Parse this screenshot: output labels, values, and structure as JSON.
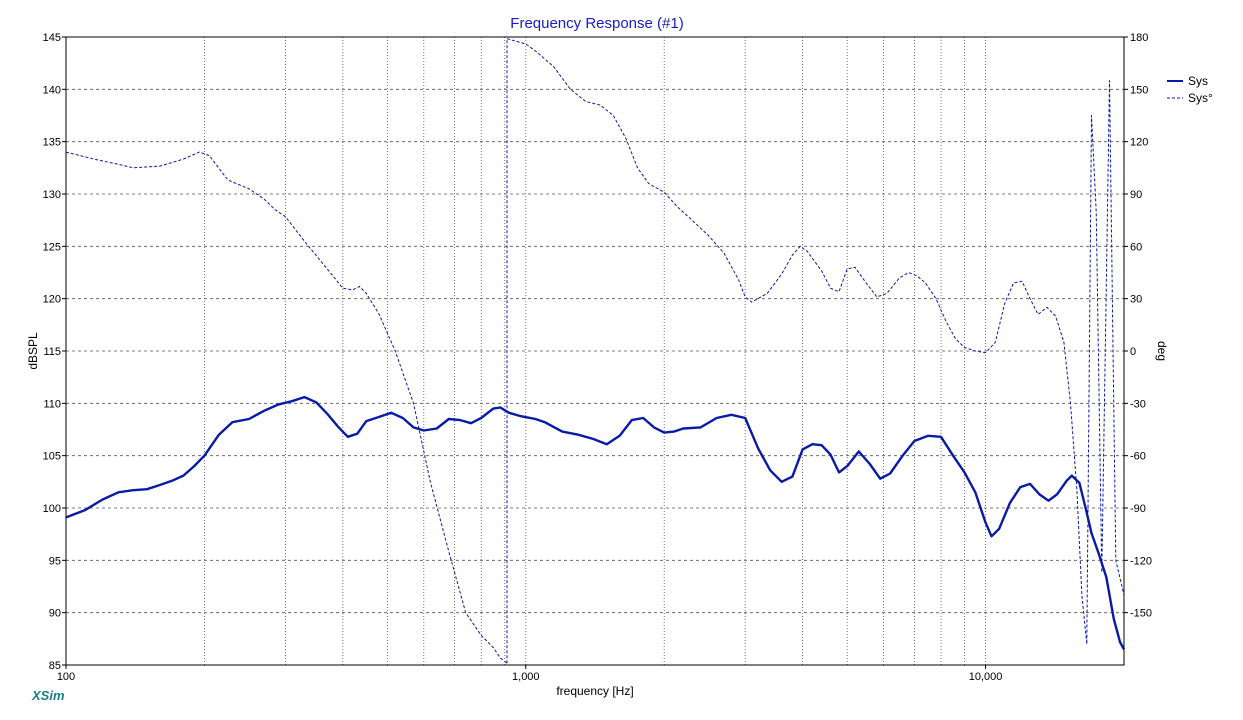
{
  "app": {
    "brand": "XSim"
  },
  "chart_data": {
    "type": "line",
    "title": "Frequency Response (#1)",
    "xlabel": "frequency [Hz]",
    "ylabel": "dBSPL",
    "y2label": "deg",
    "xscale": "log",
    "xlim": [
      100,
      20000
    ],
    "ylim": [
      85,
      145
    ],
    "y2lim": [
      -180,
      180
    ],
    "grid": true,
    "legend_position": "right",
    "x_tick_labels": [
      {
        "value": 100,
        "label": "100"
      },
      {
        "value": 1000,
        "label": "1,000"
      },
      {
        "value": 10000,
        "label": "10,000"
      }
    ],
    "y_ticks": [
      85,
      90,
      95,
      100,
      105,
      110,
      115,
      120,
      125,
      130,
      135,
      140,
      145
    ],
    "y2_ticks": [
      -150,
      -120,
      -90,
      -60,
      -30,
      0,
      30,
      60,
      90,
      120,
      150,
      180
    ],
    "colors": {
      "series": "#0a1aa8",
      "title": "#1a1acc",
      "grid": "#555555",
      "brand": "#1a7f8a"
    },
    "series": [
      {
        "name": "Sys",
        "axis": "left",
        "style": "solid",
        "points": [
          [
            100,
            99.1
          ],
          [
            110,
            99.8
          ],
          [
            120,
            100.8
          ],
          [
            130,
            101.5
          ],
          [
            140,
            101.7
          ],
          [
            150,
            101.8
          ],
          [
            160,
            102.2
          ],
          [
            170,
            102.6
          ],
          [
            180,
            103.1
          ],
          [
            190,
            104.0
          ],
          [
            200,
            105.0
          ],
          [
            215,
            107.0
          ],
          [
            230,
            108.2
          ],
          [
            250,
            108.5
          ],
          [
            270,
            109.3
          ],
          [
            290,
            109.9
          ],
          [
            310,
            110.2
          ],
          [
            330,
            110.6
          ],
          [
            350,
            110.1
          ],
          [
            370,
            109.0
          ],
          [
            390,
            107.8
          ],
          [
            410,
            106.8
          ],
          [
            430,
            107.1
          ],
          [
            450,
            108.3
          ],
          [
            480,
            108.7
          ],
          [
            510,
            109.1
          ],
          [
            540,
            108.6
          ],
          [
            570,
            107.7
          ],
          [
            600,
            107.4
          ],
          [
            640,
            107.6
          ],
          [
            680,
            108.5
          ],
          [
            720,
            108.4
          ],
          [
            760,
            108.1
          ],
          [
            800,
            108.6
          ],
          [
            850,
            109.5
          ],
          [
            880,
            109.6
          ],
          [
            920,
            109.1
          ],
          [
            970,
            108.8
          ],
          [
            1050,
            108.5
          ],
          [
            1100,
            108.2
          ],
          [
            1200,
            107.3
          ],
          [
            1300,
            107.0
          ],
          [
            1400,
            106.6
          ],
          [
            1500,
            106.1
          ],
          [
            1600,
            106.9
          ],
          [
            1700,
            108.4
          ],
          [
            1800,
            108.6
          ],
          [
            1900,
            107.7
          ],
          [
            2000,
            107.2
          ],
          [
            2100,
            107.3
          ],
          [
            2200,
            107.6
          ],
          [
            2400,
            107.7
          ],
          [
            2600,
            108.6
          ],
          [
            2800,
            108.9
          ],
          [
            3000,
            108.6
          ],
          [
            3200,
            105.7
          ],
          [
            3400,
            103.6
          ],
          [
            3600,
            102.5
          ],
          [
            3800,
            103.0
          ],
          [
            4000,
            105.6
          ],
          [
            4200,
            106.1
          ],
          [
            4400,
            106.0
          ],
          [
            4600,
            105.1
          ],
          [
            4800,
            103.4
          ],
          [
            5000,
            104.0
          ],
          [
            5300,
            105.4
          ],
          [
            5600,
            104.2
          ],
          [
            5900,
            102.8
          ],
          [
            6200,
            103.3
          ],
          [
            6600,
            105.0
          ],
          [
            7000,
            106.4
          ],
          [
            7500,
            106.9
          ],
          [
            8000,
            106.8
          ],
          [
            8500,
            105.0
          ],
          [
            9000,
            103.4
          ],
          [
            9500,
            101.5
          ],
          [
            10000,
            98.6
          ],
          [
            10300,
            97.3
          ],
          [
            10700,
            98.0
          ],
          [
            11300,
            100.5
          ],
          [
            11900,
            102.0
          ],
          [
            12500,
            102.3
          ],
          [
            13100,
            101.3
          ],
          [
            13700,
            100.7
          ],
          [
            14300,
            101.3
          ],
          [
            15000,
            102.6
          ],
          [
            15400,
            103.1
          ],
          [
            16000,
            102.4
          ],
          [
            16500,
            100.0
          ],
          [
            17000,
            97.6
          ],
          [
            17600,
            95.7
          ],
          [
            18300,
            93.4
          ],
          [
            19000,
            89.4
          ],
          [
            19600,
            87.2
          ],
          [
            20000,
            86.5
          ]
        ]
      },
      {
        "name": "Sys°",
        "axis": "right",
        "style": "dashed",
        "segments": [
          [
            [
              100,
              114
            ],
            [
              115,
              110
            ],
            [
              130,
              107
            ],
            [
              140,
              105
            ],
            [
              160,
              106
            ],
            [
              180,
              110
            ],
            [
              195,
              114
            ],
            [
              205,
              112
            ],
            [
              225,
              98
            ],
            [
              250,
              93
            ],
            [
              270,
              87
            ],
            [
              285,
              81
            ],
            [
              300,
              77
            ],
            [
              330,
              63
            ],
            [
              370,
              47
            ],
            [
              400,
              36
            ],
            [
              420,
              35
            ],
            [
              435,
              37
            ],
            [
              450,
              33
            ],
            [
              480,
              21
            ],
            [
              520,
              0
            ],
            [
              570,
              -30
            ],
            [
              620,
              -75
            ],
            [
              680,
              -115
            ],
            [
              740,
              -150
            ],
            [
              800,
              -163
            ],
            [
              850,
              -170
            ],
            [
              880,
              -176
            ],
            [
              910,
              -179
            ]
          ],
          [
            [
              910,
              -179
            ],
            [
              910,
              179
            ]
          ],
          [
            [
              910,
              179
            ],
            [
              1000,
              176
            ],
            [
              1050,
              172
            ],
            [
              1150,
              163
            ],
            [
              1250,
              150
            ],
            [
              1350,
              143
            ],
            [
              1450,
              141
            ],
            [
              1550,
              135
            ],
            [
              1650,
              122
            ],
            [
              1750,
              105
            ],
            [
              1850,
              96
            ],
            [
              2000,
              91
            ],
            [
              2150,
              82
            ],
            [
              2300,
              75
            ],
            [
              2500,
              66
            ],
            [
              2700,
              56
            ],
            [
              2900,
              41
            ],
            [
              3000,
              31
            ],
            [
              3100,
              28
            ],
            [
              3350,
              33
            ],
            [
              3600,
              44
            ],
            [
              3800,
              55
            ],
            [
              3950,
              60
            ],
            [
              4100,
              57
            ],
            [
              4400,
              46
            ],
            [
              4600,
              36
            ],
            [
              4800,
              34
            ],
            [
              5000,
              47
            ],
            [
              5200,
              48
            ],
            [
              5500,
              39
            ],
            [
              5800,
              31
            ],
            [
              6100,
              33
            ],
            [
              6500,
              42
            ],
            [
              6800,
              45
            ],
            [
              7100,
              43
            ],
            [
              7400,
              39
            ],
            [
              7800,
              30
            ],
            [
              8200,
              17
            ],
            [
              8600,
              7
            ],
            [
              9000,
              2
            ],
            [
              9500,
              0
            ],
            [
              10000,
              -1
            ],
            [
              10500,
              5
            ],
            [
              11000,
              27
            ],
            [
              11500,
              39
            ],
            [
              12000,
              40
            ],
            [
              12500,
              30
            ],
            [
              13000,
              21
            ],
            [
              13600,
              25
            ],
            [
              14200,
              20
            ],
            [
              14800,
              5
            ],
            [
              15300,
              -30
            ],
            [
              15800,
              -80
            ],
            [
              16200,
              -140
            ],
            [
              16600,
              -168
            ],
            [
              17000,
              135
            ],
            [
              17400,
              80
            ],
            [
              17900,
              -127
            ],
            [
              18600,
              155
            ],
            [
              19200,
              -120
            ],
            [
              20000,
              -140
            ]
          ]
        ]
      }
    ]
  }
}
